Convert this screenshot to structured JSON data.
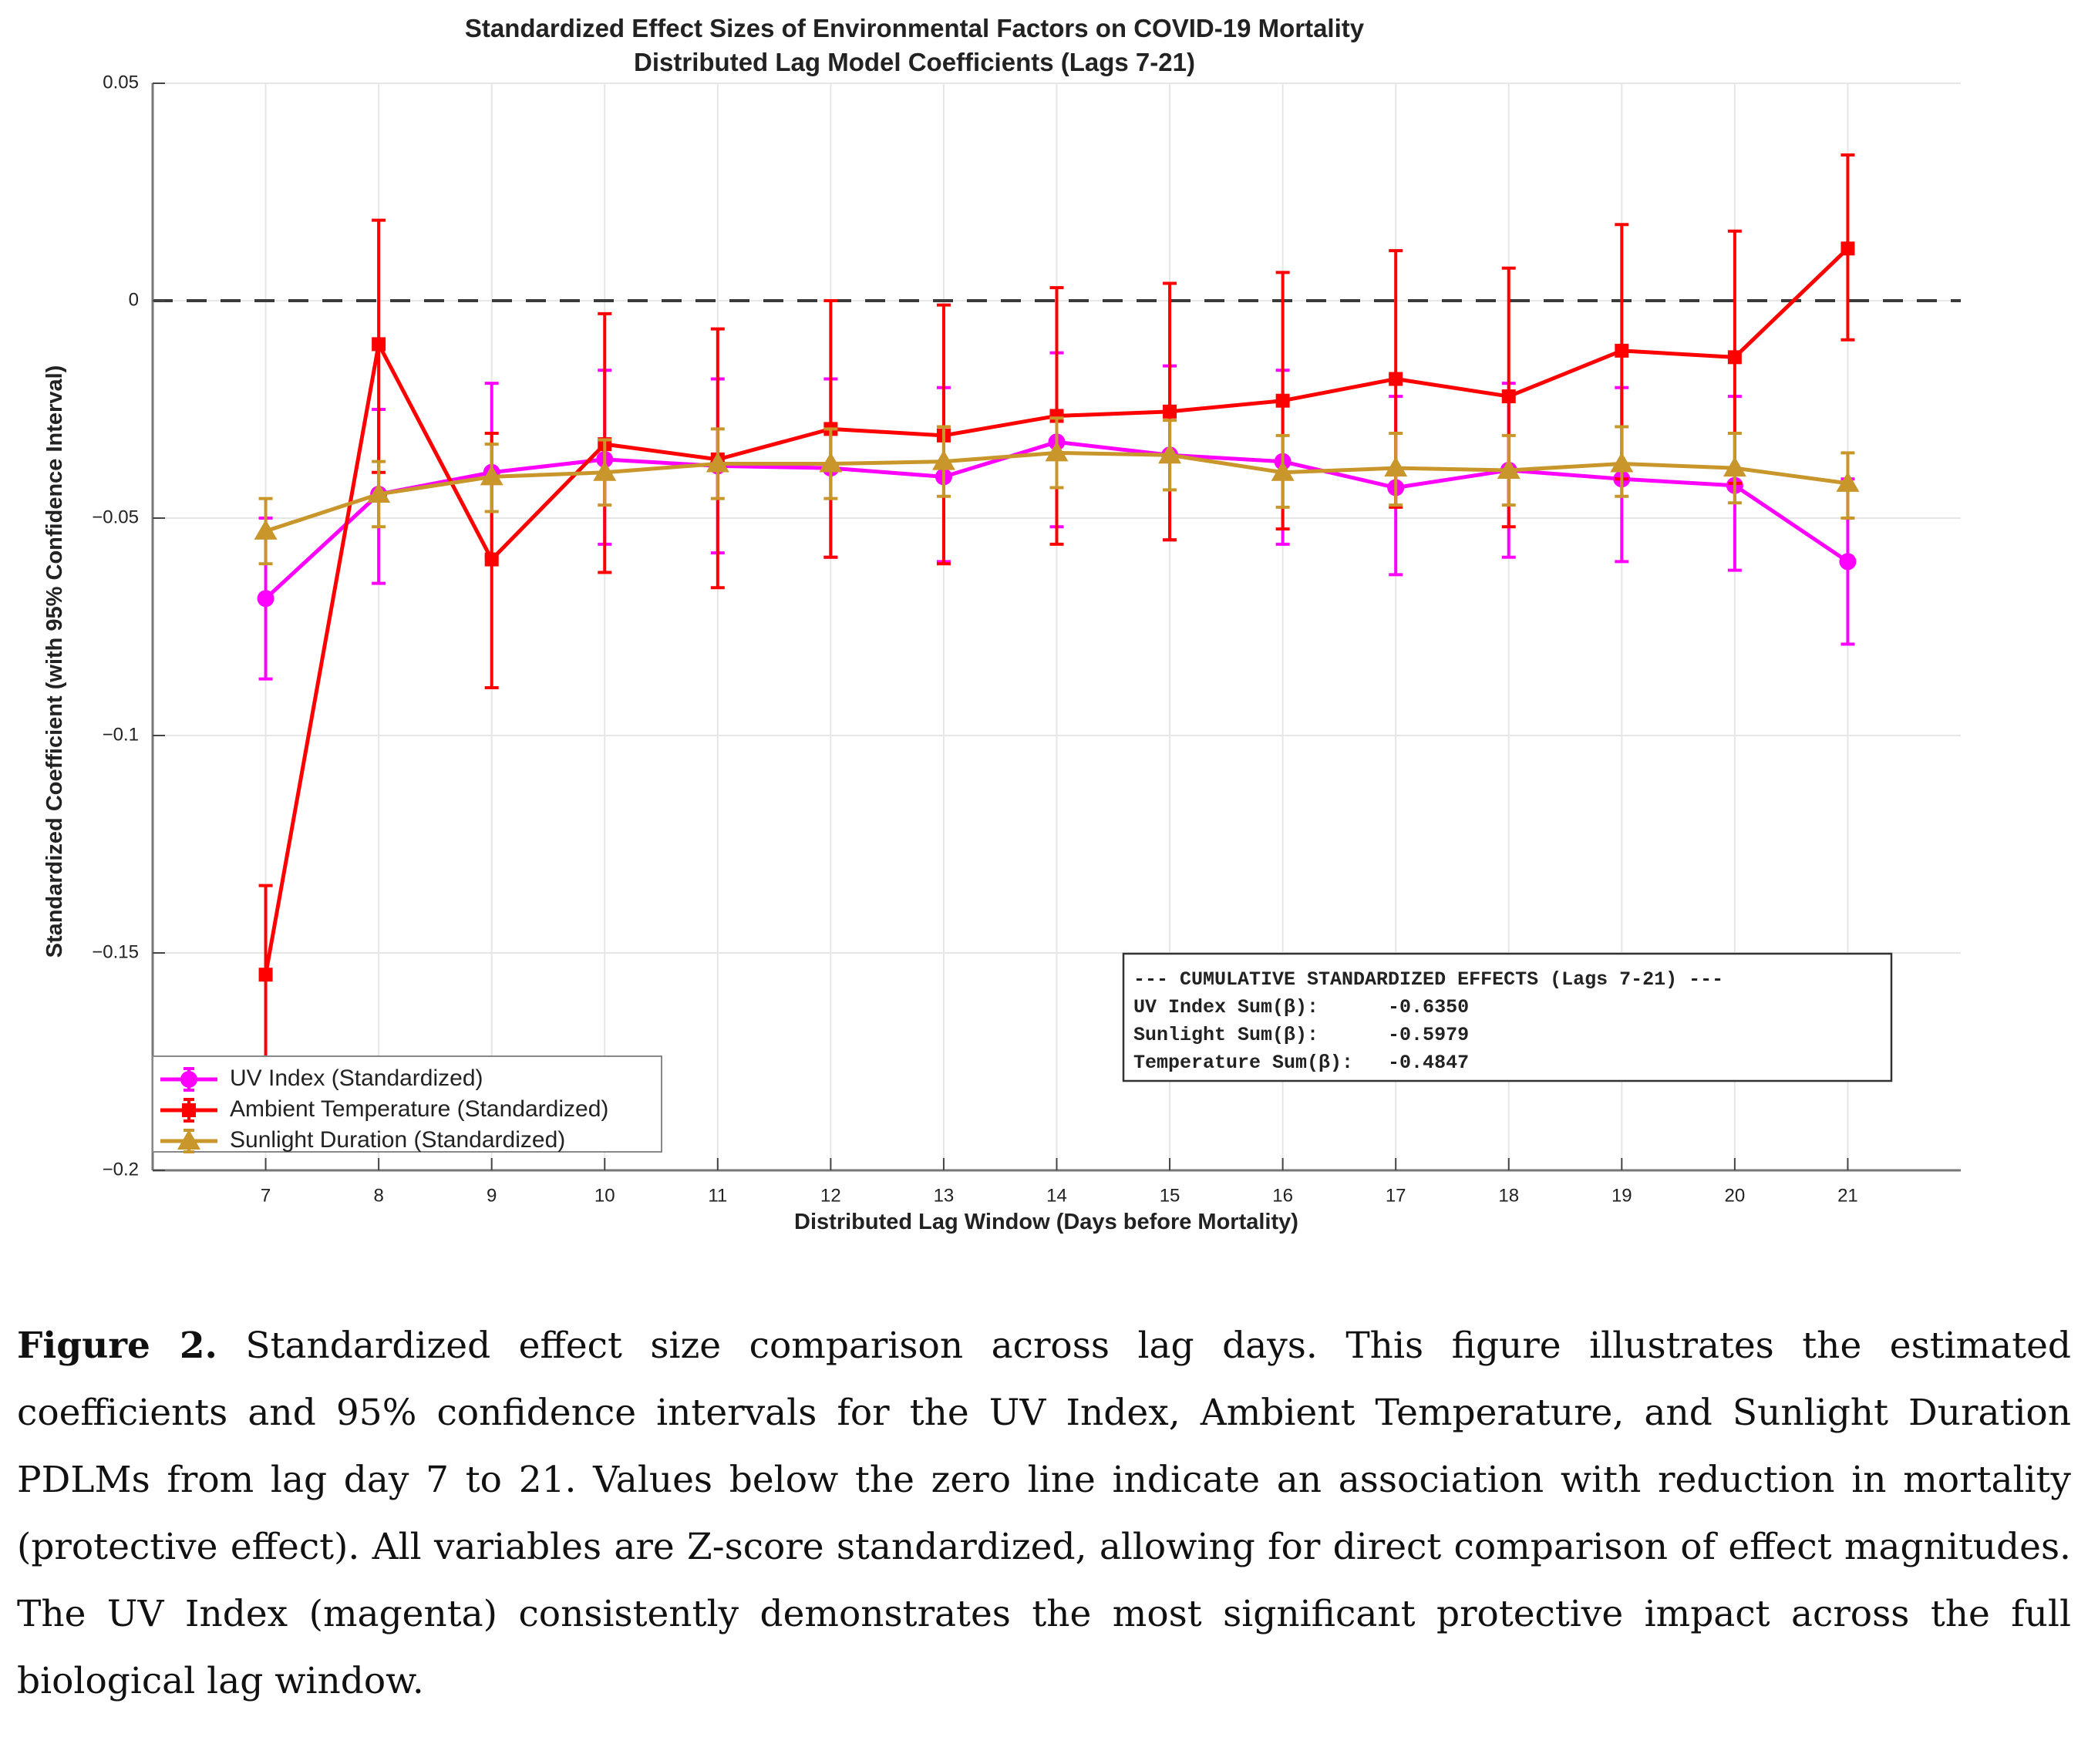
{
  "chart_data": {
    "type": "line",
    "title": "Standardized Effect Sizes of Environmental Factors on COVID-19 Mortality",
    "subtitle": "Distributed Lag Model Coefficients (Lags 7-21)",
    "xlabel": "Distributed Lag Window (Days before Mortality)",
    "ylabel": "Standardized Coefficient (with 95% Confidence Interval)",
    "x": [
      7,
      8,
      9,
      10,
      11,
      12,
      13,
      14,
      15,
      16,
      17,
      18,
      19,
      20,
      21
    ],
    "xlim": [
      6,
      22.0
    ],
    "ylim": [
      -0.2,
      0.05
    ],
    "yticks": [
      0.05,
      0,
      -0.05,
      -0.1,
      -0.15,
      -0.2
    ],
    "ytick_labels": [
      "0.05",
      "0",
      "−0.05",
      "−0.1",
      "−0.15",
      "−0.2"
    ],
    "xtick_labels": [
      "7",
      "8",
      "9",
      "10",
      "11",
      "12",
      "13",
      "14",
      "15",
      "16",
      "17",
      "18",
      "19",
      "20",
      "21"
    ],
    "grid": true,
    "reference_line": {
      "y": 0,
      "style": "dashed",
      "color": "#333333"
    },
    "legend_position": "bottom-left",
    "series": [
      {
        "name": "UV Index (Standardized)",
        "color": "#ff00ff",
        "marker": "circle",
        "values": [
          -0.0685,
          -0.0445,
          -0.0395,
          -0.0365,
          -0.038,
          -0.0385,
          -0.0405,
          -0.0325,
          -0.0355,
          -0.037,
          -0.043,
          -0.039,
          -0.041,
          -0.0425,
          -0.06
        ],
        "ci_lower": [
          -0.087,
          -0.065,
          -0.059,
          -0.056,
          -0.058,
          -0.059,
          -0.06,
          -0.052,
          -0.055,
          -0.056,
          -0.063,
          -0.059,
          -0.06,
          -0.062,
          -0.079
        ],
        "ci_upper": [
          -0.05,
          -0.025,
          -0.019,
          -0.016,
          -0.018,
          -0.018,
          -0.02,
          -0.012,
          -0.015,
          -0.016,
          -0.022,
          -0.019,
          -0.02,
          -0.022,
          -0.041
        ]
      },
      {
        "name": "Ambient Temperature (Standardized)",
        "color": "#ff0000",
        "marker": "square",
        "values": [
          -0.155,
          -0.01,
          -0.0595,
          -0.033,
          -0.0365,
          -0.0295,
          -0.031,
          -0.0265,
          -0.0255,
          -0.023,
          -0.018,
          -0.022,
          -0.0115,
          -0.013,
          0.012
        ],
        "ci_lower": [
          -0.175,
          -0.0395,
          -0.089,
          -0.0625,
          -0.066,
          -0.059,
          -0.0605,
          -0.056,
          -0.055,
          -0.0525,
          -0.0475,
          -0.052,
          -0.041,
          -0.042,
          -0.009
        ],
        "ci_upper": [
          -0.1345,
          0.0185,
          -0.0305,
          -0.003,
          -0.0065,
          0.0,
          -0.001,
          0.003,
          0.004,
          0.0065,
          0.0115,
          0.0075,
          0.0175,
          0.016,
          0.0335
        ]
      },
      {
        "name": "Sunlight Duration (Standardized)",
        "color": "#c8962a",
        "marker": "triangle",
        "values": [
          -0.053,
          -0.0445,
          -0.0405,
          -0.0395,
          -0.0375,
          -0.0375,
          -0.037,
          -0.035,
          -0.0355,
          -0.0395,
          -0.0385,
          -0.039,
          -0.0375,
          -0.0385,
          -0.042
        ],
        "ci_lower": [
          -0.0605,
          -0.052,
          -0.0485,
          -0.047,
          -0.0455,
          -0.0455,
          -0.045,
          -0.043,
          -0.0435,
          -0.0475,
          -0.047,
          -0.047,
          -0.045,
          -0.0465,
          -0.05
        ],
        "ci_upper": [
          -0.0455,
          -0.037,
          -0.033,
          -0.032,
          -0.0295,
          -0.0295,
          -0.029,
          -0.027,
          -0.0275,
          -0.031,
          -0.0305,
          -0.031,
          -0.029,
          -0.0305,
          -0.035
        ]
      }
    ],
    "annotation": {
      "position": "bottom-right",
      "lines": [
        "--- CUMULATIVE STANDARDIZED EFFECTS (Lags 7-21) ---",
        "UV Index Sum(β):      -0.6350",
        "Sunlight Sum(β):      -0.5979",
        "Temperature Sum(β):   -0.4847"
      ]
    }
  },
  "caption": {
    "label": "Figure 2.",
    "text": " Standardized effect size comparison across lag days. This figure illustrates the estimated coefficients and 95% confidence intervals for the UV Index, Ambient Temperature, and Sunlight Duration PDLMs from lag day 7 to 21.  Values below the zero line indicate an association with reduction in mortality (protective effect). All variables are Z-score standardized, allowing for direct comparison of effect magnitudes.  The UV Index (magenta) consistently demonstrates the most significant protective impact across the full biological lag window."
  }
}
